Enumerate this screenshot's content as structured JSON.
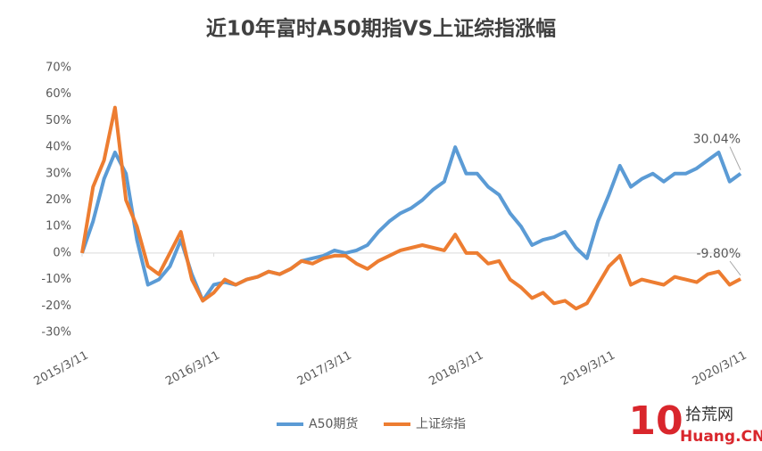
{
  "chart_data": {
    "type": "line",
    "title": "近10年富时A50期指VS上证综指涨幅",
    "categories": [
      "2015/3/11",
      null,
      null,
      null,
      null,
      null,
      null,
      null,
      null,
      null,
      null,
      null,
      "2016/3/11",
      null,
      null,
      null,
      null,
      null,
      null,
      null,
      null,
      null,
      null,
      null,
      "2017/3/11",
      null,
      null,
      null,
      null,
      null,
      null,
      null,
      null,
      null,
      null,
      null,
      "2018/3/11",
      null,
      null,
      null,
      null,
      null,
      null,
      null,
      null,
      null,
      null,
      null,
      "2019/3/11",
      null,
      null,
      null,
      null,
      null,
      null,
      null,
      null,
      null,
      null,
      null,
      "2020/3/11"
    ],
    "series": [
      {
        "name": "A50期货",
        "color": "#5b9bd5",
        "values": [
          0,
          12,
          28,
          38,
          30,
          5,
          -12,
          -10,
          -5,
          5,
          -8,
          -18,
          -12,
          -11,
          -12,
          -10,
          -9,
          -7,
          -8,
          -6,
          -3,
          -2,
          -1,
          1,
          0,
          1,
          3,
          8,
          12,
          15,
          17,
          20,
          24,
          27,
          40,
          30,
          30,
          25,
          22,
          15,
          10,
          3,
          5,
          6,
          8,
          2,
          -2,
          12,
          22,
          33,
          25,
          28,
          30,
          27,
          30,
          30,
          32,
          35,
          38,
          27,
          30.04
        ],
        "value_labels": [
          null,
          null,
          null,
          null,
          null,
          null,
          null,
          null,
          null,
          null,
          null,
          null,
          null,
          null,
          null,
          null,
          null,
          null,
          null,
          null,
          null,
          null,
          null,
          null,
          null,
          null,
          null,
          null,
          null,
          null,
          null,
          null,
          null,
          null,
          null,
          null,
          null,
          null,
          null,
          null,
          null,
          null,
          null,
          null,
          null,
          null,
          null,
          null,
          null,
          null,
          null,
          null,
          null,
          null,
          null,
          null,
          null,
          null,
          null,
          null,
          "30.04%"
        ]
      },
      {
        "name": "上证综指",
        "color": "#ed7d31",
        "values": [
          0,
          25,
          35,
          55,
          20,
          10,
          -5,
          -8,
          0,
          8,
          -10,
          -18,
          -15,
          -10,
          -12,
          -10,
          -9,
          -7,
          -8,
          -6,
          -3,
          -4,
          -2,
          -1,
          -1,
          -4,
          -6,
          -3,
          -1,
          1,
          2,
          3,
          2,
          1,
          7,
          0,
          0,
          -4,
          -3,
          -10,
          -13,
          -17,
          -15,
          -19,
          -18,
          -21,
          -19,
          -12,
          -5,
          -1,
          -12,
          -10,
          -11,
          -12,
          -9,
          -10,
          -11,
          -8,
          -7,
          -12,
          -9.8
        ],
        "value_labels": [
          null,
          null,
          null,
          null,
          null,
          null,
          null,
          null,
          null,
          null,
          null,
          null,
          null,
          null,
          null,
          null,
          null,
          null,
          null,
          null,
          null,
          null,
          null,
          null,
          null,
          null,
          null,
          null,
          null,
          null,
          null,
          null,
          null,
          null,
          null,
          null,
          null,
          null,
          null,
          null,
          null,
          null,
          null,
          null,
          null,
          null,
          null,
          null,
          null,
          null,
          null,
          null,
          null,
          null,
          null,
          null,
          null,
          null,
          null,
          null,
          "-9.80%"
        ]
      }
    ],
    "ylim": [
      -30,
      70
    ],
    "yticks": [
      {
        "value": -30,
        "label": "-30%"
      },
      {
        "value": -20,
        "label": "-20%"
      },
      {
        "value": -10,
        "label": "-10%"
      },
      {
        "value": 0,
        "label": "0%"
      },
      {
        "value": 10,
        "label": "10%"
      },
      {
        "value": 20,
        "label": "20%"
      },
      {
        "value": 30,
        "label": "30%"
      },
      {
        "value": 40,
        "label": "40%"
      },
      {
        "value": 50,
        "label": "50%"
      },
      {
        "value": 60,
        "label": "60%"
      },
      {
        "value": 70,
        "label": "70%"
      }
    ],
    "grid": false,
    "legend": "bottom"
  },
  "watermark": {
    "logo": "10",
    "name": "拾荒网",
    "site": "Huang.CN"
  }
}
